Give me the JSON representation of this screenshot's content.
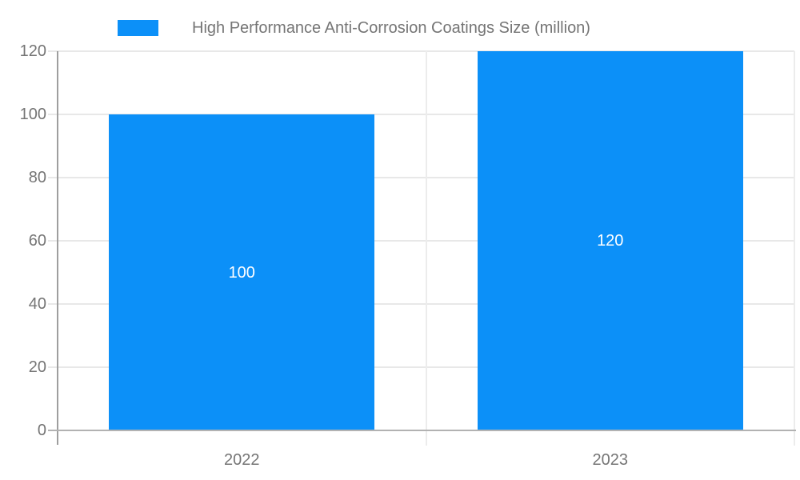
{
  "chart_data": {
    "type": "bar",
    "title": "High Performance Anti-Corrosion Coatings Size (million)",
    "categories": [
      "2022",
      "2023"
    ],
    "series": [
      {
        "name": "High Performance Anti-Corrosion Coatings Size (million)",
        "values": [
          100,
          120
        ]
      }
    ],
    "data_labels": [
      "100",
      "120"
    ],
    "xlabel": "",
    "ylabel": "",
    "ylim": [
      0,
      120
    ],
    "yticks": [
      0,
      20,
      40,
      60,
      80,
      100,
      120
    ],
    "grid": true,
    "legend_position": "top",
    "colors": {
      "bar": "#0c90f8",
      "data_label_text": "#ffffff",
      "axis_text": "#757575",
      "gridline": "#e8e8e8",
      "boundary_line": "#ececec",
      "y_axis_line": "#9e9e9e",
      "x_axis_line": "#b2b2b2"
    }
  }
}
